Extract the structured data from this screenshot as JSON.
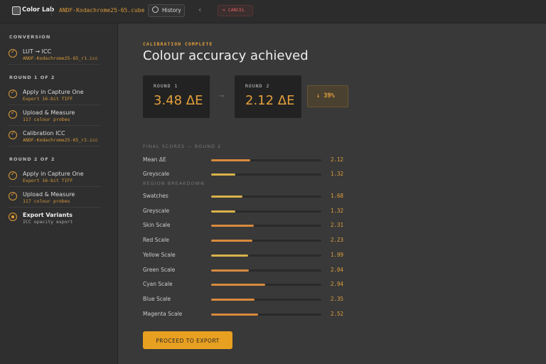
{
  "header": {
    "logo": "Color Lab",
    "file": "ANDF-Kodachrome25-65.cube",
    "history": "History",
    "cancel": "CANCEL"
  },
  "sidebar": {
    "sections": [
      {
        "title": "CONVERSION",
        "steps": [
          {
            "title": "LUT → ICC",
            "detail": "ANDF-Kodachrome25-65_r1.icc",
            "status": "done"
          }
        ]
      },
      {
        "title": "ROUND 1 OF 2",
        "steps": [
          {
            "title": "Apply in Capture One",
            "detail": "Export 16-bit TIFF",
            "status": "done"
          },
          {
            "title": "Upload & Measure",
            "detail": "117 colour probes",
            "status": "done"
          },
          {
            "title": "Calibration ICC",
            "detail": "ANDF-Kodachrome25-65_r2.icc",
            "status": "done"
          }
        ]
      },
      {
        "title": "ROUND 2 OF 2",
        "steps": [
          {
            "title": "Apply in Capture One",
            "detail": "Export 16-bit TIFF",
            "status": "done"
          },
          {
            "title": "Upload & Measure",
            "detail": "117 colour probes",
            "status": "done"
          },
          {
            "title": "Export Variants",
            "detail": "ICC opacity export",
            "status": "active"
          }
        ]
      }
    ]
  },
  "main": {
    "eyebrow": "CALIBRATION COMPLETE",
    "title": "Colour accuracy achieved",
    "rounds": [
      {
        "label": "ROUND 1",
        "value": "3.48 ΔE"
      },
      {
        "label": "ROUND 2",
        "value": "2.12 ΔE"
      }
    ],
    "improvement": "↓ 39%",
    "final_label": "FINAL SCORES — ROUND 2",
    "final": [
      {
        "name": "Mean ΔE",
        "score": 2.12,
        "color": "#d98a3d"
      },
      {
        "name": "Greyscale",
        "score": 1.32,
        "color": "#d9b24a"
      }
    ],
    "region_label": "REGION BREAKDOWN",
    "regions": [
      {
        "name": "Swatches",
        "score": 1.68,
        "color": "#d9b24a"
      },
      {
        "name": "Greyscale",
        "score": 1.32,
        "color": "#d9b24a"
      },
      {
        "name": "Skin Scale",
        "score": 2.31,
        "color": "#d98a3d"
      },
      {
        "name": "Red Scale",
        "score": 2.23,
        "color": "#d98a3d"
      },
      {
        "name": "Yellow Scale",
        "score": 1.99,
        "color": "#d9b24a"
      },
      {
        "name": "Green Scale",
        "score": 2.04,
        "color": "#d98a3d"
      },
      {
        "name": "Cyan Scale",
        "score": 2.94,
        "color": "#d98a3d"
      },
      {
        "name": "Blue Scale",
        "score": 2.35,
        "color": "#d98a3d"
      },
      {
        "name": "Magenta Scale",
        "score": 2.52,
        "color": "#d98a3d"
      }
    ],
    "button": "PROCEED TO EXPORT"
  }
}
